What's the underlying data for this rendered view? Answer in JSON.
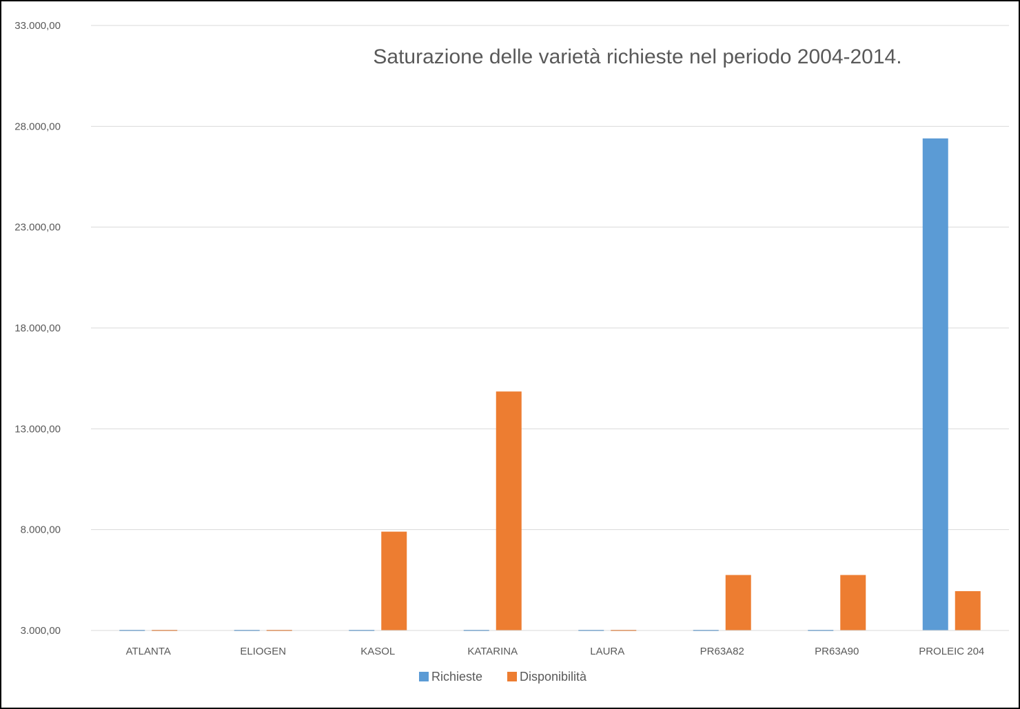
{
  "chart_data": {
    "type": "bar",
    "title": "Saturazione delle varietà richieste nel periodo 2004-2014.",
    "xlabel": "",
    "ylabel": "",
    "categories": [
      "ATLANTA",
      "ELIOGEN",
      "KASOL",
      "KATARINA",
      "LAURA",
      "PR63A82",
      "PR63A90",
      "PROLEIC 204"
    ],
    "series": [
      {
        "name": "Richieste",
        "color": "#5B9BD5",
        "values": [
          3000,
          3000,
          3000,
          3000,
          3000,
          3000,
          3000,
          27400
        ]
      },
      {
        "name": "Disponibilità",
        "color": "#ED7D31",
        "values": [
          3000,
          3000,
          7900,
          14850,
          3000,
          5750,
          5750,
          4950
        ]
      }
    ],
    "ylim": [
      3000,
      33000
    ],
    "yticks": [
      3000,
      8000,
      13000,
      18000,
      23000,
      28000,
      33000
    ],
    "ytick_labels": [
      "3.000,00",
      "8.000,00",
      "13.000,00",
      "18.000,00",
      "23.000,00",
      "28.000,00",
      "33.000,00"
    ],
    "grid": true,
    "legend_position": "bottom"
  }
}
